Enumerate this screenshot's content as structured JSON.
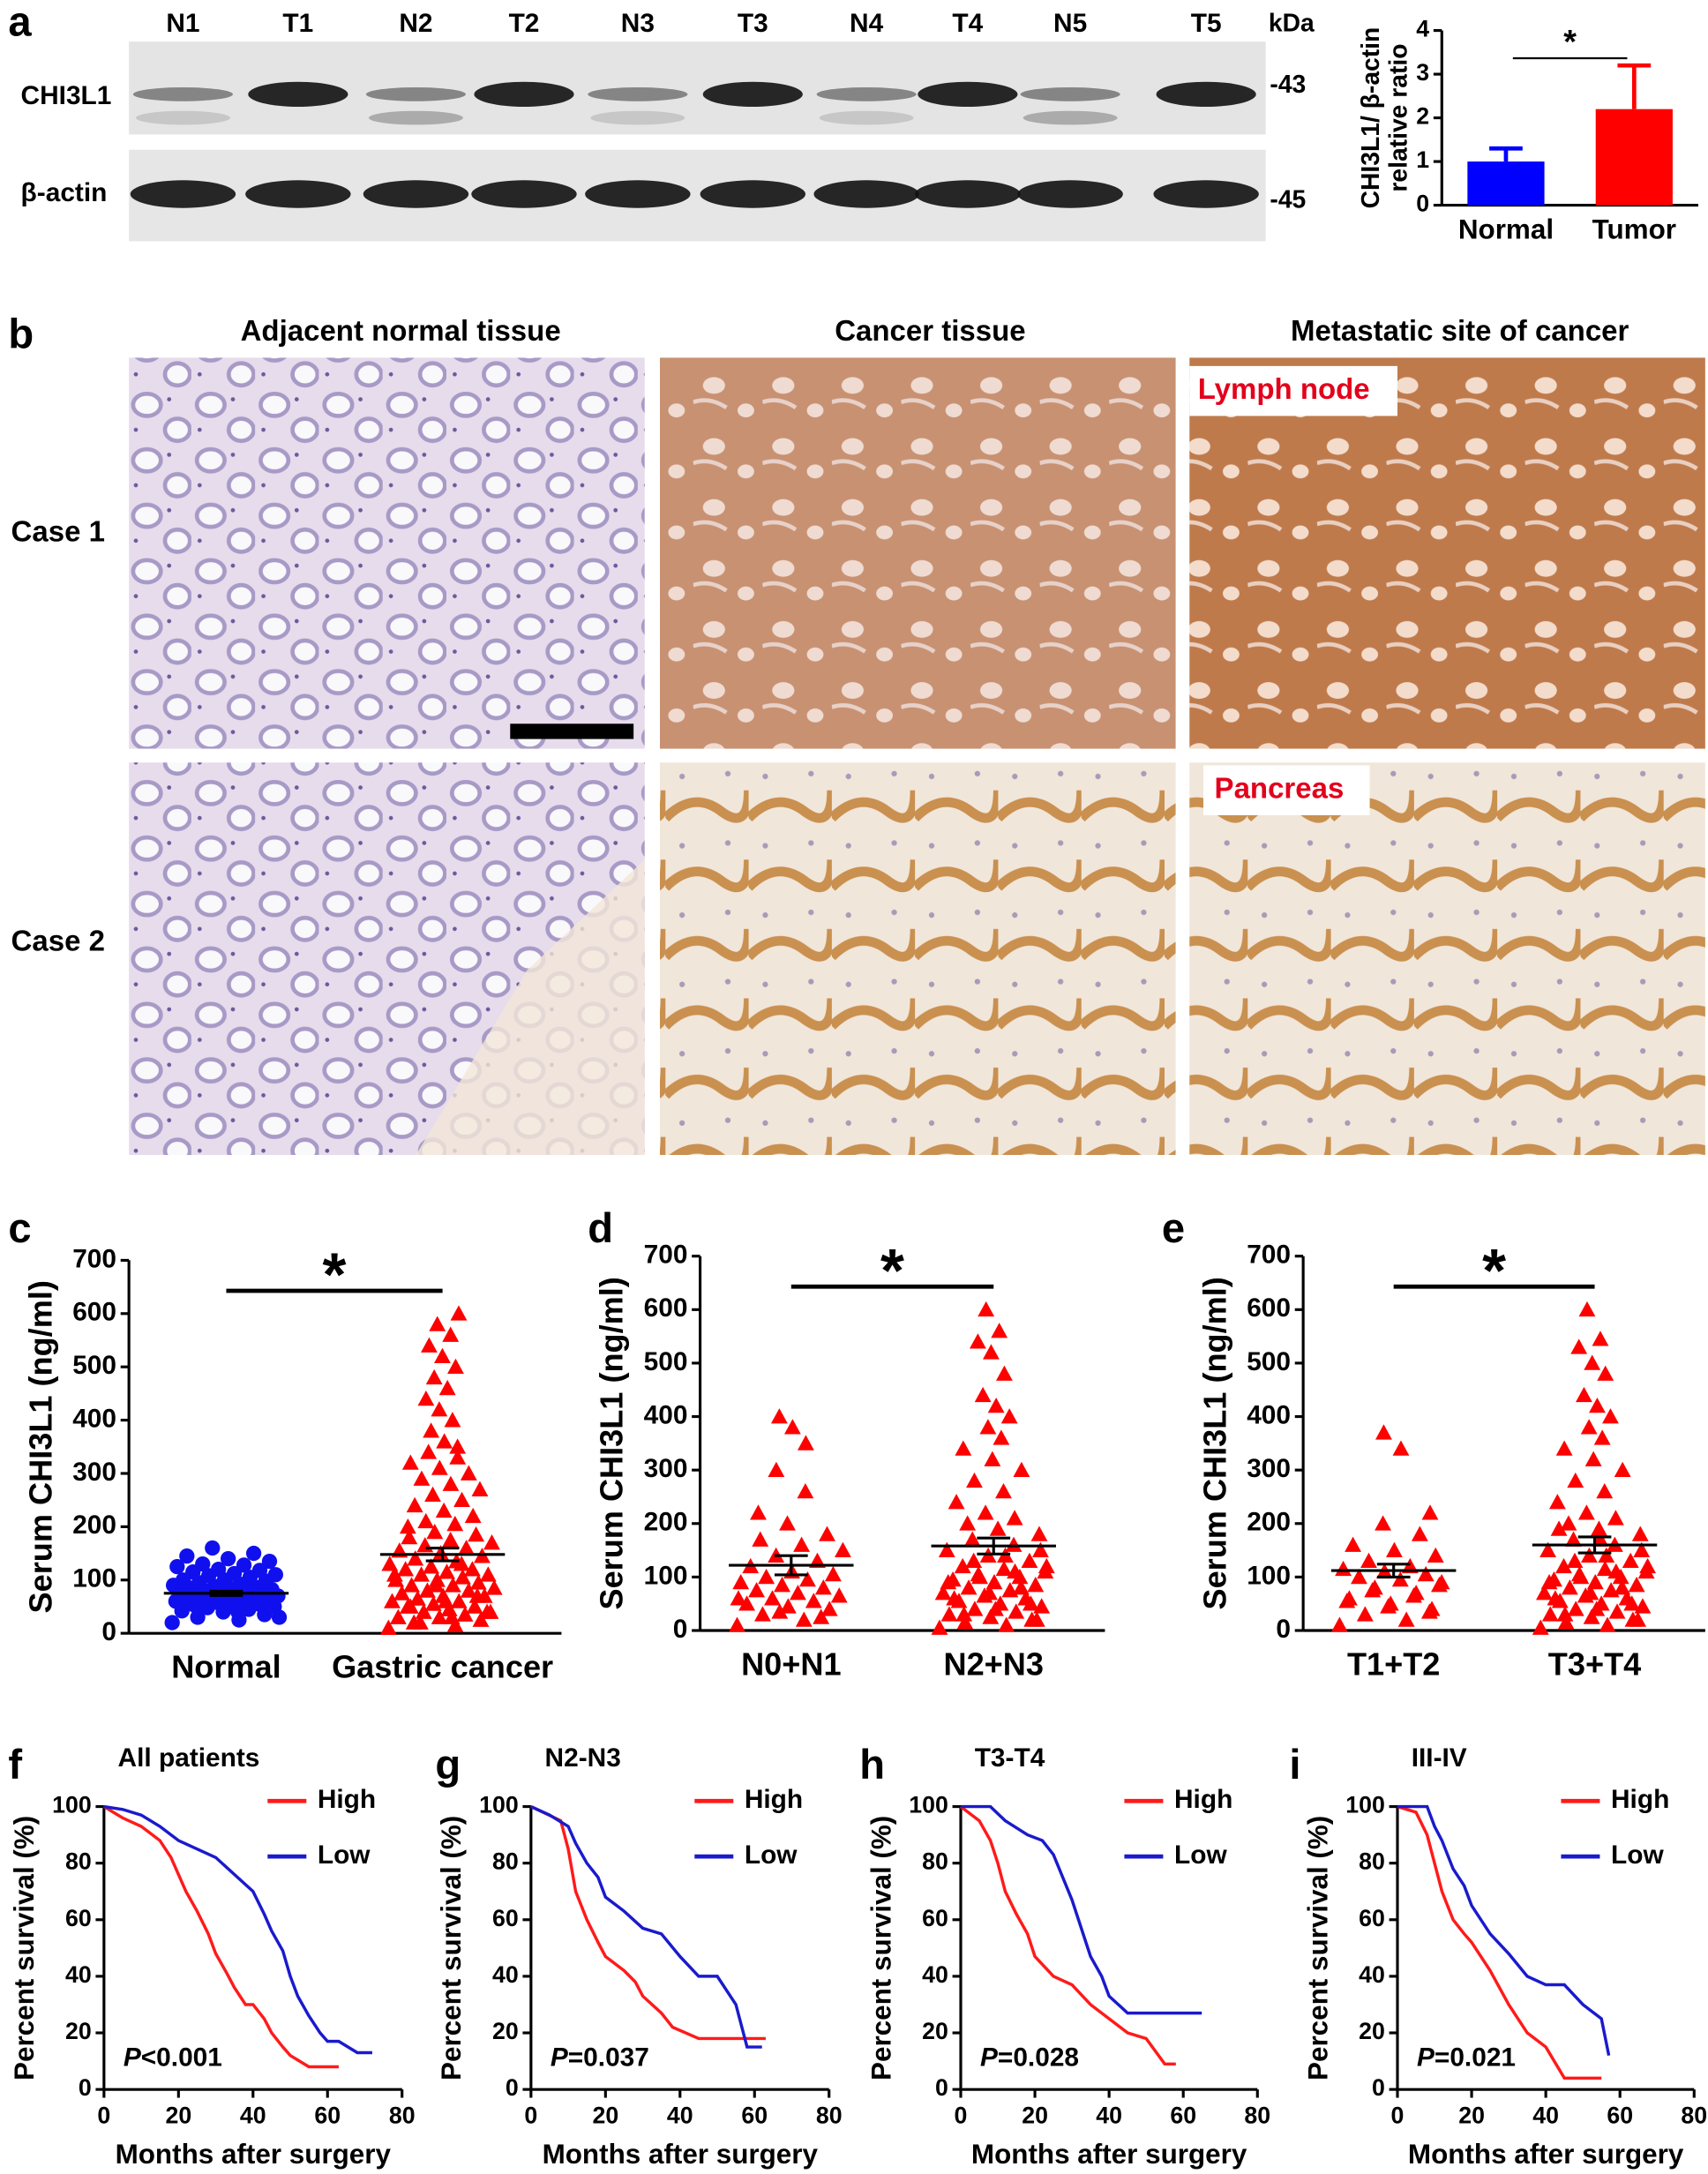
{
  "panel_labels": [
    "a",
    "b",
    "c",
    "d",
    "e",
    "f",
    "g",
    "h",
    "i"
  ],
  "blot": {
    "lanes": [
      "N1",
      "T1",
      "N2",
      "T2",
      "N3",
      "T3",
      "N4",
      "T4",
      "N5",
      "T5"
    ],
    "unit": "kDa",
    "rows": [
      {
        "name": "CHI3L1",
        "marker": "-43"
      },
      {
        "name": "β-actin",
        "marker": "-45"
      }
    ]
  },
  "ihc": {
    "columns": [
      "Adjacent normal tissue",
      "Cancer tissue",
      "Metastatic site of cancer"
    ],
    "rows": [
      "Case 1",
      "Case 2"
    ],
    "site_labels": [
      "Lymph node",
      "Pancreas"
    ]
  },
  "chart_data": [
    {
      "type": "bar",
      "categories": [
        "Normal",
        "Tumor"
      ],
      "values": [
        1.0,
        2.2
      ],
      "errors": [
        0.3,
        1.0
      ],
      "colors": [
        "#0000ff",
        "#ff0000"
      ],
      "ylabel": [
        "CHI3L1/ β-actin",
        "relative ratio"
      ],
      "ylim": [
        0,
        4
      ],
      "yticks": [
        0,
        1,
        2,
        3,
        4
      ],
      "annotation": "*"
    },
    {
      "type": "strip",
      "categories": [
        "Normal",
        "Gastric cancer"
      ],
      "values": [
        [
          20,
          25,
          30,
          35,
          40,
          42,
          45,
          48,
          50,
          52,
          55,
          55,
          58,
          60,
          60,
          62,
          64,
          65,
          66,
          68,
          70,
          70,
          72,
          74,
          75,
          76,
          78,
          80,
          80,
          82,
          84,
          85,
          86,
          88,
          90,
          92,
          95,
          98,
          100,
          100,
          105,
          108,
          110,
          112,
          115,
          118,
          120,
          125,
          128,
          130,
          135,
          140,
          145,
          150,
          160,
          30,
          40,
          50,
          60,
          70
        ],
        [
          10,
          15,
          20,
          25,
          30,
          30,
          35,
          40,
          40,
          45,
          50,
          50,
          55,
          60,
          60,
          65,
          70,
          70,
          75,
          80,
          80,
          85,
          90,
          90,
          95,
          100,
          100,
          105,
          110,
          110,
          115,
          120,
          120,
          125,
          130,
          135,
          140,
          145,
          150,
          155,
          160,
          165,
          170,
          175,
          180,
          185,
          190,
          200,
          205,
          210,
          220,
          230,
          240,
          250,
          260,
          270,
          280,
          290,
          300,
          310,
          320,
          330,
          340,
          350,
          360,
          380,
          400,
          420,
          440,
          460,
          480,
          500,
          520,
          540,
          560,
          580,
          600,
          30,
          50,
          70,
          90,
          110,
          130,
          20,
          40,
          60
        ]
      ],
      "means": [
        75,
        148
      ],
      "sems": [
        4,
        12
      ],
      "colors": [
        "#1010ee",
        "#ff0000"
      ],
      "markers": [
        "circle",
        "triangle"
      ],
      "ylabel": "Serum CHI3L1 (ng/ml)",
      "ylim": [
        0,
        700
      ],
      "yticks": [
        0,
        100,
        200,
        300,
        400,
        500,
        600,
        700
      ],
      "annotation": "*"
    },
    {
      "type": "strip",
      "categories": [
        "N0+N1",
        "N2+N3"
      ],
      "values": [
        [
          10,
          20,
          30,
          40,
          45,
          50,
          55,
          60,
          65,
          70,
          75,
          80,
          85,
          90,
          95,
          100,
          105,
          110,
          120,
          130,
          140,
          150,
          160,
          170,
          180,
          200,
          220,
          260,
          300,
          350,
          380,
          400,
          25,
          35,
          60
        ],
        [
          5,
          10,
          15,
          20,
          25,
          30,
          35,
          40,
          45,
          50,
          55,
          60,
          65,
          70,
          75,
          80,
          85,
          90,
          95,
          100,
          105,
          110,
          115,
          120,
          130,
          140,
          150,
          160,
          170,
          180,
          190,
          200,
          210,
          220,
          240,
          260,
          280,
          300,
          320,
          340,
          360,
          380,
          400,
          420,
          440,
          480,
          520,
          540,
          560,
          600,
          20,
          40,
          60,
          80,
          100,
          120,
          140,
          30,
          50,
          70,
          90,
          110,
          130,
          150
        ]
      ],
      "means": [
        122,
        158
      ],
      "sems": [
        18,
        15
      ],
      "colors": [
        "#ff0000",
        "#ff0000"
      ],
      "markers": [
        "triangle",
        "triangle"
      ],
      "ylabel": "Serum CHI3L1 (ng/ml)",
      "ylim": [
        0,
        700
      ],
      "yticks": [
        0,
        100,
        200,
        300,
        400,
        500,
        600,
        700
      ],
      "annotation": "*"
    },
    {
      "type": "strip",
      "categories": [
        "T1+T2",
        "T3+T4"
      ],
      "values": [
        [
          10,
          20,
          30,
          40,
          50,
          60,
          70,
          80,
          90,
          95,
          100,
          105,
          110,
          115,
          120,
          130,
          140,
          150,
          160,
          180,
          200,
          220,
          340,
          370,
          35,
          45,
          55,
          65,
          75,
          85
        ],
        [
          5,
          10,
          15,
          20,
          25,
          30,
          35,
          40,
          45,
          50,
          55,
          60,
          65,
          70,
          75,
          80,
          85,
          90,
          95,
          100,
          105,
          110,
          115,
          120,
          130,
          140,
          150,
          160,
          170,
          180,
          190,
          200,
          210,
          220,
          240,
          260,
          280,
          300,
          320,
          340,
          360,
          380,
          400,
          420,
          440,
          480,
          500,
          530,
          545,
          600,
          20,
          40,
          60,
          80,
          100,
          120,
          140,
          30,
          50,
          70,
          90,
          110,
          130,
          150,
          170,
          190
        ]
      ],
      "means": [
        112,
        160
      ],
      "sems": [
        12,
        15
      ],
      "colors": [
        "#ff0000",
        "#ff0000"
      ],
      "markers": [
        "triangle",
        "triangle"
      ],
      "ylabel": "Serum CHI3L1 (ng/ml)",
      "ylim": [
        0,
        700
      ],
      "yticks": [
        0,
        100,
        200,
        300,
        400,
        500,
        600,
        700
      ],
      "annotation": "*"
    },
    {
      "type": "line",
      "title": "All patients",
      "xlabel": "Months after surgery",
      "ylabel": "Percent survival (%)",
      "xlim": [
        0,
        80
      ],
      "xticks": [
        0,
        20,
        40,
        60,
        80
      ],
      "ylim": [
        0,
        100
      ],
      "yticks": [
        0,
        20,
        40,
        60,
        80,
        100
      ],
      "p_label": "P",
      "p_value": "<0.001",
      "series": [
        {
          "name": "High",
          "color": "#ff1a1a",
          "x": [
            0,
            5,
            10,
            15,
            18,
            20,
            22,
            25,
            28,
            30,
            33,
            35,
            38,
            40,
            43,
            45,
            48,
            50,
            55,
            58,
            63
          ],
          "values": [
            100,
            96,
            93,
            88,
            82,
            76,
            70,
            63,
            55,
            48,
            41,
            36,
            30,
            30,
            25,
            20,
            15,
            12,
            8,
            8,
            8
          ]
        },
        {
          "name": "Low",
          "color": "#1a1acc",
          "x": [
            0,
            5,
            10,
            15,
            20,
            25,
            30,
            35,
            40,
            43,
            45,
            48,
            50,
            52,
            55,
            58,
            60,
            63,
            68,
            72
          ],
          "values": [
            100,
            99,
            97,
            93,
            88,
            85,
            82,
            76,
            70,
            62,
            56,
            49,
            40,
            33,
            26,
            20,
            17,
            17,
            13,
            13
          ]
        }
      ]
    },
    {
      "type": "line",
      "title": "N2-N3",
      "xlabel": "Months after surgery",
      "ylabel": "Percent survival (%)",
      "xlim": [
        0,
        80
      ],
      "xticks": [
        0,
        20,
        40,
        60,
        80
      ],
      "ylim": [
        0,
        100
      ],
      "yticks": [
        0,
        20,
        40,
        60,
        80,
        100
      ],
      "p_label": "P",
      "p_value": "=0.037",
      "series": [
        {
          "name": "High",
          "color": "#ff1a1a",
          "x": [
            0,
            8,
            10,
            12,
            15,
            18,
            20,
            25,
            28,
            30,
            35,
            38,
            45,
            55,
            60,
            63
          ],
          "values": [
            100,
            95,
            85,
            70,
            60,
            52,
            47,
            42,
            38,
            33,
            27,
            22,
            18,
            18,
            18,
            18
          ]
        },
        {
          "name": "Low",
          "color": "#1a1acc",
          "x": [
            0,
            5,
            10,
            12,
            15,
            18,
            20,
            25,
            30,
            35,
            40,
            45,
            50,
            55,
            58,
            62
          ],
          "values": [
            100,
            97,
            93,
            87,
            80,
            75,
            68,
            63,
            57,
            55,
            47,
            40,
            40,
            30,
            15,
            15
          ]
        }
      ]
    },
    {
      "type": "line",
      "title": "T3-T4",
      "xlabel": "Months after surgery",
      "ylabel": "Percent survival (%)",
      "xlim": [
        0,
        80
      ],
      "xticks": [
        0,
        20,
        40,
        60,
        80
      ],
      "ylim": [
        0,
        100
      ],
      "yticks": [
        0,
        20,
        40,
        60,
        80,
        100
      ],
      "p_label": "P",
      "p_value": "=0.028",
      "series": [
        {
          "name": "High",
          "color": "#ff1a1a",
          "x": [
            0,
            5,
            8,
            10,
            12,
            15,
            18,
            20,
            25,
            30,
            35,
            40,
            45,
            50,
            55,
            58
          ],
          "values": [
            100,
            95,
            88,
            80,
            70,
            62,
            55,
            47,
            40,
            37,
            30,
            25,
            20,
            18,
            9,
            9
          ]
        },
        {
          "name": "Low",
          "color": "#1a1acc",
          "x": [
            0,
            8,
            12,
            18,
            22,
            25,
            30,
            33,
            35,
            38,
            40,
            45,
            50,
            55,
            65
          ],
          "values": [
            100,
            100,
            95,
            90,
            88,
            83,
            67,
            55,
            47,
            40,
            33,
            27,
            27,
            27,
            27
          ]
        }
      ]
    },
    {
      "type": "line",
      "title": "III-IV",
      "xlabel": "Months after surgery",
      "ylabel": "Percent survival (%)",
      "xlim": [
        0,
        80
      ],
      "xticks": [
        0,
        20,
        40,
        60,
        80
      ],
      "ylim": [
        0,
        100
      ],
      "yticks": [
        0,
        20,
        40,
        60,
        80,
        100
      ],
      "p_label": "P",
      "p_value": "=0.021",
      "series": [
        {
          "name": "High",
          "color": "#ff1a1a",
          "x": [
            0,
            5,
            8,
            10,
            12,
            15,
            18,
            20,
            25,
            30,
            35,
            40,
            45,
            50,
            55
          ],
          "values": [
            100,
            98,
            90,
            80,
            70,
            60,
            55,
            52,
            42,
            30,
            20,
            15,
            4,
            4,
            4
          ]
        },
        {
          "name": "Low",
          "color": "#1a1acc",
          "x": [
            0,
            8,
            10,
            12,
            15,
            18,
            20,
            25,
            30,
            35,
            40,
            45,
            50,
            55,
            57
          ],
          "values": [
            100,
            100,
            93,
            88,
            78,
            72,
            65,
            55,
            48,
            40,
            37,
            37,
            30,
            25,
            12
          ]
        }
      ]
    }
  ]
}
